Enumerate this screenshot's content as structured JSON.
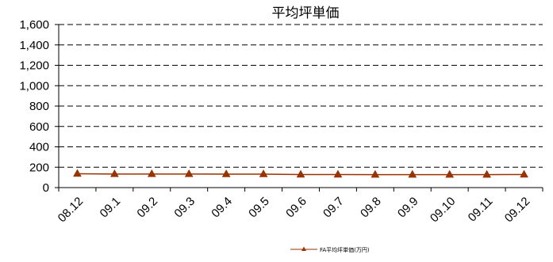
{
  "chart_data": {
    "type": "line",
    "title": "平均坪単価",
    "xlabel": "",
    "ylabel": "",
    "categories": [
      "08.12",
      "09.1",
      "09.2",
      "09.3",
      "09.4",
      "09.5",
      "09.6",
      "09.7",
      "09.8",
      "09.9",
      "09.10",
      "09.11",
      "09.12"
    ],
    "series": [
      {
        "name": "FA平均坪単価(万円)",
        "color": "#993300",
        "marker": "triangle",
        "values": [
          136,
          133,
          133,
          133,
          132,
          132,
          128,
          128,
          127,
          127,
          127,
          127,
          128
        ]
      }
    ],
    "ylim": [
      0,
      1600
    ],
    "yticks": [
      0,
      200,
      400,
      600,
      800,
      1000,
      1200,
      1400,
      1600
    ],
    "ytick_labels": [
      "0",
      "200",
      "400",
      "600",
      "800",
      "1,000",
      "1,200",
      "1,400",
      "1,600"
    ],
    "grid": true,
    "grid_style": "dashed",
    "legend_position": "bottom-right"
  }
}
